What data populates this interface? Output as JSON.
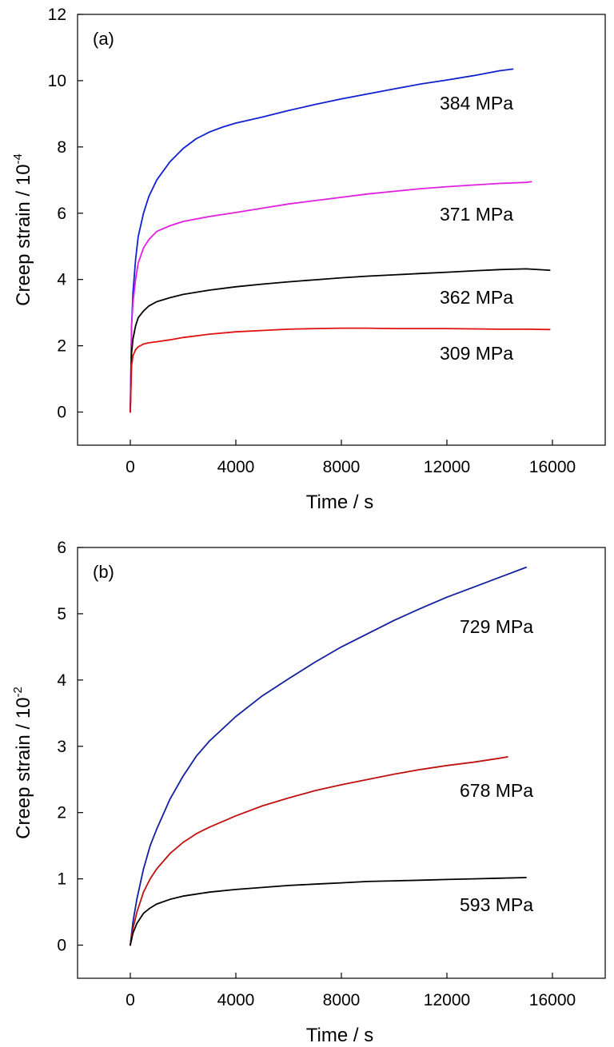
{
  "chart_data": [
    {
      "type": "line",
      "panel_label": "(a)",
      "xlabel": "Time / s",
      "ylabel": "Creep strain / 10",
      "ylabel_exponent": "-4",
      "xlim": [
        -2000,
        18000
      ],
      "ylim": [
        -1,
        12
      ],
      "xticks": [
        0,
        4000,
        8000,
        12000,
        16000
      ],
      "yticks": [
        0,
        2,
        4,
        6,
        8,
        10,
        12
      ],
      "grid": false,
      "series": [
        {
          "name": "384 MPa",
          "color": "#1020d0",
          "x": [
            0,
            50,
            100,
            200,
            300,
            500,
            700,
            1000,
            1500,
            2000,
            2500,
            3000,
            3500,
            4000,
            5000,
            6000,
            7000,
            8000,
            9000,
            10000,
            11000,
            12000,
            13000,
            14000,
            14500
          ],
          "y": [
            0,
            2.6,
            3.6,
            4.6,
            5.3,
            6.0,
            6.5,
            7.0,
            7.55,
            7.95,
            8.25,
            8.45,
            8.6,
            8.72,
            8.9,
            9.1,
            9.28,
            9.45,
            9.6,
            9.75,
            9.9,
            10.02,
            10.15,
            10.3,
            10.35
          ]
        },
        {
          "name": "371 MPa",
          "color": "#e020e0",
          "x": [
            0,
            50,
            100,
            200,
            300,
            500,
            700,
            1000,
            1500,
            2000,
            3000,
            4000,
            5000,
            6000,
            7000,
            8000,
            9000,
            10000,
            11000,
            12000,
            13000,
            14000,
            15000,
            15200
          ],
          "y": [
            0,
            2.6,
            3.3,
            4.0,
            4.5,
            4.95,
            5.2,
            5.45,
            5.62,
            5.75,
            5.9,
            6.02,
            6.15,
            6.28,
            6.38,
            6.48,
            6.58,
            6.66,
            6.74,
            6.8,
            6.85,
            6.9,
            6.93,
            6.95
          ]
        },
        {
          "name": "362 MPa",
          "color": "#000000",
          "x": [
            0,
            50,
            100,
            200,
            300,
            500,
            700,
            1000,
            1500,
            2000,
            3000,
            4000,
            5000,
            6000,
            7000,
            8000,
            9000,
            10000,
            11000,
            12000,
            13000,
            14000,
            15000,
            15900
          ],
          "y": [
            0,
            1.8,
            2.2,
            2.6,
            2.85,
            3.05,
            3.2,
            3.33,
            3.45,
            3.55,
            3.68,
            3.78,
            3.86,
            3.93,
            3.99,
            4.05,
            4.1,
            4.14,
            4.18,
            4.22,
            4.26,
            4.3,
            4.32,
            4.28
          ]
        },
        {
          "name": "309 MPa",
          "color": "#e01010",
          "x": [
            0,
            50,
            100,
            200,
            300,
            500,
            700,
            1000,
            1500,
            2000,
            3000,
            4000,
            5000,
            6000,
            7000,
            8000,
            9000,
            10000,
            11000,
            12000,
            13000,
            14000,
            15000,
            15900
          ],
          "y": [
            0,
            1.4,
            1.7,
            1.88,
            1.97,
            2.05,
            2.09,
            2.12,
            2.18,
            2.25,
            2.35,
            2.42,
            2.46,
            2.5,
            2.52,
            2.53,
            2.53,
            2.52,
            2.52,
            2.52,
            2.51,
            2.5,
            2.5,
            2.49
          ]
        }
      ]
    },
    {
      "type": "line",
      "panel_label": "(b)",
      "xlabel": "Time / s",
      "ylabel": "Creep strain / 10",
      "ylabel_exponent": "-2",
      "xlim": [
        -2000,
        18000
      ],
      "ylim": [
        -0.5,
        6
      ],
      "xticks": [
        0,
        4000,
        8000,
        12000,
        16000
      ],
      "yticks": [
        0,
        1,
        2,
        3,
        4,
        5,
        6
      ],
      "grid": false,
      "series": [
        {
          "name": "729 MPa",
          "color": "#1020a0",
          "x": [
            0,
            100,
            250,
            500,
            750,
            1000,
            1500,
            2000,
            2500,
            3000,
            4000,
            5000,
            6000,
            7000,
            8000,
            9000,
            10000,
            11000,
            12000,
            13000,
            14000,
            15000
          ],
          "y": [
            0,
            0.35,
            0.7,
            1.15,
            1.5,
            1.75,
            2.2,
            2.55,
            2.85,
            3.08,
            3.45,
            3.76,
            4.02,
            4.27,
            4.5,
            4.7,
            4.9,
            5.08,
            5.25,
            5.4,
            5.55,
            5.7
          ]
        },
        {
          "name": "678 MPa",
          "color": "#c01010",
          "x": [
            0,
            100,
            250,
            500,
            750,
            1000,
            1500,
            2000,
            2500,
            3000,
            4000,
            5000,
            6000,
            7000,
            8000,
            9000,
            10000,
            11000,
            12000,
            13000,
            14000,
            14300
          ],
          "y": [
            0,
            0.25,
            0.5,
            0.8,
            1.0,
            1.15,
            1.38,
            1.55,
            1.68,
            1.78,
            1.95,
            2.1,
            2.22,
            2.33,
            2.42,
            2.5,
            2.58,
            2.65,
            2.71,
            2.76,
            2.82,
            2.84
          ]
        },
        {
          "name": "593 MPa",
          "color": "#000000",
          "x": [
            0,
            100,
            250,
            500,
            750,
            1000,
            1500,
            2000,
            2500,
            3000,
            4000,
            5000,
            6000,
            7000,
            8000,
            9000,
            10000,
            11000,
            12000,
            13000,
            14000,
            15000
          ],
          "y": [
            0,
            0.18,
            0.33,
            0.48,
            0.56,
            0.62,
            0.69,
            0.74,
            0.77,
            0.8,
            0.84,
            0.87,
            0.9,
            0.92,
            0.94,
            0.96,
            0.97,
            0.98,
            0.99,
            1.0,
            1.01,
            1.02
          ]
        }
      ]
    }
  ]
}
